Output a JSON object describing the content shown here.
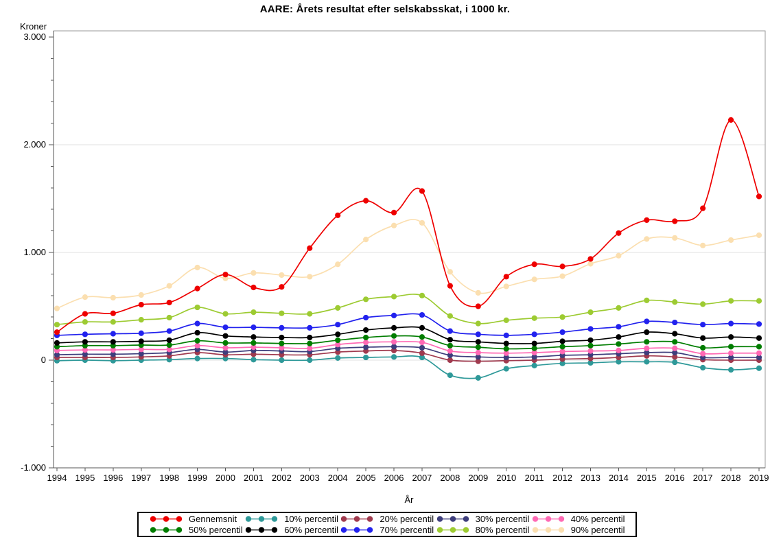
{
  "chart_data": {
    "type": "line",
    "title": "AARE: Årets resultat efter selskabsskat, i 1000 kr.",
    "xlabel": "År",
    "ylabel": "Kroner",
    "x": [
      1994,
      1995,
      1996,
      1997,
      1998,
      1999,
      2000,
      2001,
      2002,
      2003,
      2004,
      2005,
      2006,
      2007,
      2008,
      2009,
      2010,
      2011,
      2012,
      2013,
      2014,
      2015,
      2016,
      2017,
      2018,
      2019
    ],
    "ylim": [
      -1000,
      3050
    ],
    "yticks_major": [
      -1000,
      0,
      1000,
      2000,
      3000
    ],
    "ytick_labels": [
      "-1.000",
      "0",
      "1.000",
      "2.000",
      "3.000"
    ],
    "y_minor_tick_step": 200,
    "gridlines_at": [
      0,
      1000,
      2000
    ],
    "grid": true,
    "legend_position": "bottom",
    "series": [
      {
        "name": "Gennemsnit",
        "color": "#ee0000",
        "values": [
          260,
          430,
          435,
          515,
          535,
          665,
          795,
          675,
          680,
          1040,
          1345,
          1480,
          1370,
          1570,
          690,
          500,
          775,
          890,
          870,
          940,
          1180,
          1300,
          1290,
          1410,
          2230,
          1520
        ]
      },
      {
        "name": "10% percentil",
        "color": "#2e9999",
        "values": [
          -5,
          0,
          -5,
          0,
          5,
          15,
          15,
          5,
          0,
          0,
          20,
          25,
          30,
          25,
          -140,
          -165,
          -80,
          -50,
          -30,
          -25,
          -15,
          -15,
          -20,
          -70,
          -90,
          -75
        ]
      },
      {
        "name": "20% percentil",
        "color": "#a03a4e",
        "values": [
          25,
          25,
          25,
          30,
          40,
          70,
          50,
          55,
          50,
          50,
          75,
          85,
          90,
          65,
          0,
          -10,
          -5,
          0,
          10,
          15,
          25,
          40,
          30,
          5,
          0,
          0
        ]
      },
      {
        "name": "30% percentil",
        "color": "#3e3e7c",
        "values": [
          50,
          55,
          55,
          60,
          70,
          100,
          75,
          90,
          85,
          80,
          110,
          120,
          125,
          115,
          45,
          30,
          25,
          30,
          45,
          50,
          60,
          70,
          70,
          25,
          25,
          25
        ]
      },
      {
        "name": "40% percentil",
        "color": "#ff69b4",
        "values": [
          90,
          95,
          95,
          100,
          100,
          135,
          115,
          120,
          115,
          110,
          145,
          165,
          170,
          165,
          85,
          70,
          65,
          70,
          80,
          85,
          90,
          110,
          110,
          60,
          65,
          65
        ]
      },
      {
        "name": "50% percentil",
        "color": "#007d00",
        "values": [
          125,
          135,
          135,
          140,
          140,
          180,
          160,
          160,
          155,
          155,
          185,
          210,
          225,
          215,
          135,
          120,
          105,
          110,
          125,
          135,
          150,
          170,
          170,
          115,
          125,
          125
        ]
      },
      {
        "name": "60% percentil",
        "color": "#000000",
        "values": [
          160,
          170,
          170,
          175,
          185,
          255,
          225,
          215,
          210,
          210,
          240,
          280,
          300,
          300,
          190,
          170,
          155,
          155,
          175,
          185,
          215,
          260,
          245,
          205,
          215,
          205
        ]
      },
      {
        "name": "70% percentil",
        "color": "#2222ee",
        "values": [
          230,
          240,
          245,
          250,
          270,
          340,
          305,
          305,
          300,
          300,
          330,
          395,
          415,
          420,
          270,
          240,
          230,
          240,
          260,
          290,
          310,
          360,
          350,
          330,
          340,
          335
        ]
      },
      {
        "name": "80% percentil",
        "color": "#9dcb32",
        "values": [
          330,
          355,
          355,
          375,
          395,
          490,
          430,
          445,
          435,
          430,
          485,
          565,
          590,
          600,
          410,
          340,
          370,
          390,
          400,
          445,
          485,
          555,
          540,
          520,
          550,
          550
        ]
      },
      {
        "name": "90% percentil",
        "color": "#fbdfb0",
        "values": [
          480,
          585,
          580,
          605,
          690,
          860,
          760,
          810,
          790,
          775,
          890,
          1120,
          1250,
          1275,
          820,
          625,
          685,
          750,
          780,
          895,
          970,
          1125,
          1135,
          1065,
          1115,
          1160
        ]
      }
    ],
    "legend_rows": [
      [
        "Gennemsnit",
        "10% percentil",
        "20% percentil",
        "30% percentil",
        "40% percentil"
      ],
      [
        "50% percentil",
        "60% percentil",
        "70% percentil",
        "80% percentil",
        "90% percentil"
      ]
    ],
    "draw_order": [
      "10% percentil",
      "20% percentil",
      "30% percentil",
      "40% percentil",
      "50% percentil",
      "60% percentil",
      "70% percentil",
      "80% percentil",
      "90% percentil",
      "Gennemsnit"
    ],
    "colors": {
      "grid": "#e2e2e2",
      "frame": "#999999",
      "axis": "#555555",
      "tick": "#555555"
    }
  }
}
